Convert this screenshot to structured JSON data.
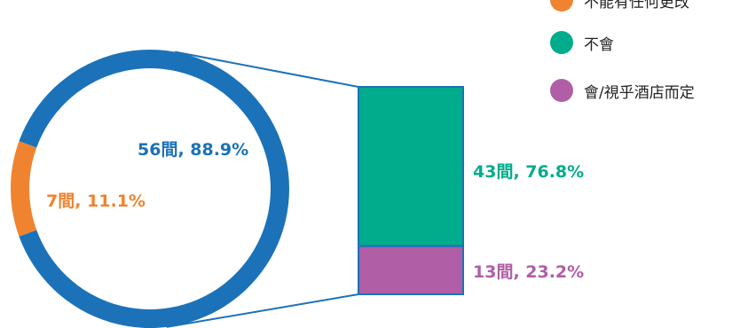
{
  "chart_data": {
    "type": "pie",
    "pie": {
      "slices": [
        {
          "value": 56,
          "percent": 88.9,
          "label": "56間, 88.9%",
          "color": "#1b72b8"
        },
        {
          "value": 7,
          "percent": 11.1,
          "label": "7間, 11.1%",
          "color": "#f0832f"
        }
      ]
    },
    "bar": {
      "segments": [
        {
          "value": 43,
          "percent": 76.8,
          "label": "43間, 76.8%",
          "color": "#00ac8c"
        },
        {
          "value": 13,
          "percent": 23.2,
          "label": "13間, 23.2%",
          "color": "#b05ea5"
        }
      ]
    },
    "legend": [
      {
        "label": "不能有任何更改",
        "color": "#f0832f"
      },
      {
        "label": "不會",
        "color": "#00ac8c"
      },
      {
        "label": "會/視乎酒店而定",
        "color": "#b05ea5"
      }
    ],
    "legend_position": "top-right"
  }
}
